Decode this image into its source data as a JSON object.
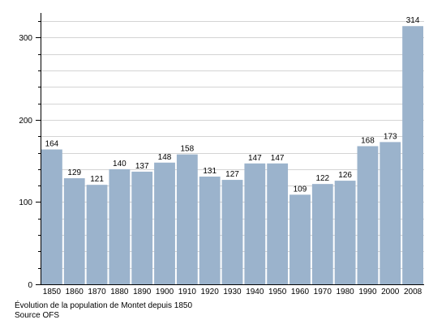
{
  "chart_data": {
    "type": "bar",
    "categories": [
      "1850",
      "1860",
      "1870",
      "1880",
      "1890",
      "1900",
      "1910",
      "1920",
      "1930",
      "1940",
      "1950",
      "1960",
      "1970",
      "1980",
      "1990",
      "2000",
      "2008"
    ],
    "values": [
      164,
      129,
      121,
      140,
      137,
      148,
      158,
      131,
      127,
      147,
      147,
      109,
      122,
      126,
      168,
      173,
      314
    ],
    "ylim": [
      0,
      330
    ],
    "yticks": [
      0,
      100,
      200,
      300
    ],
    "grid": true,
    "bar_color": "#9bb3cc",
    "grid_color": "#d4d4d4"
  },
  "caption": {
    "line1": "Évolution de la population de Montet depuis 1850",
    "line2": "Source OFS"
  }
}
